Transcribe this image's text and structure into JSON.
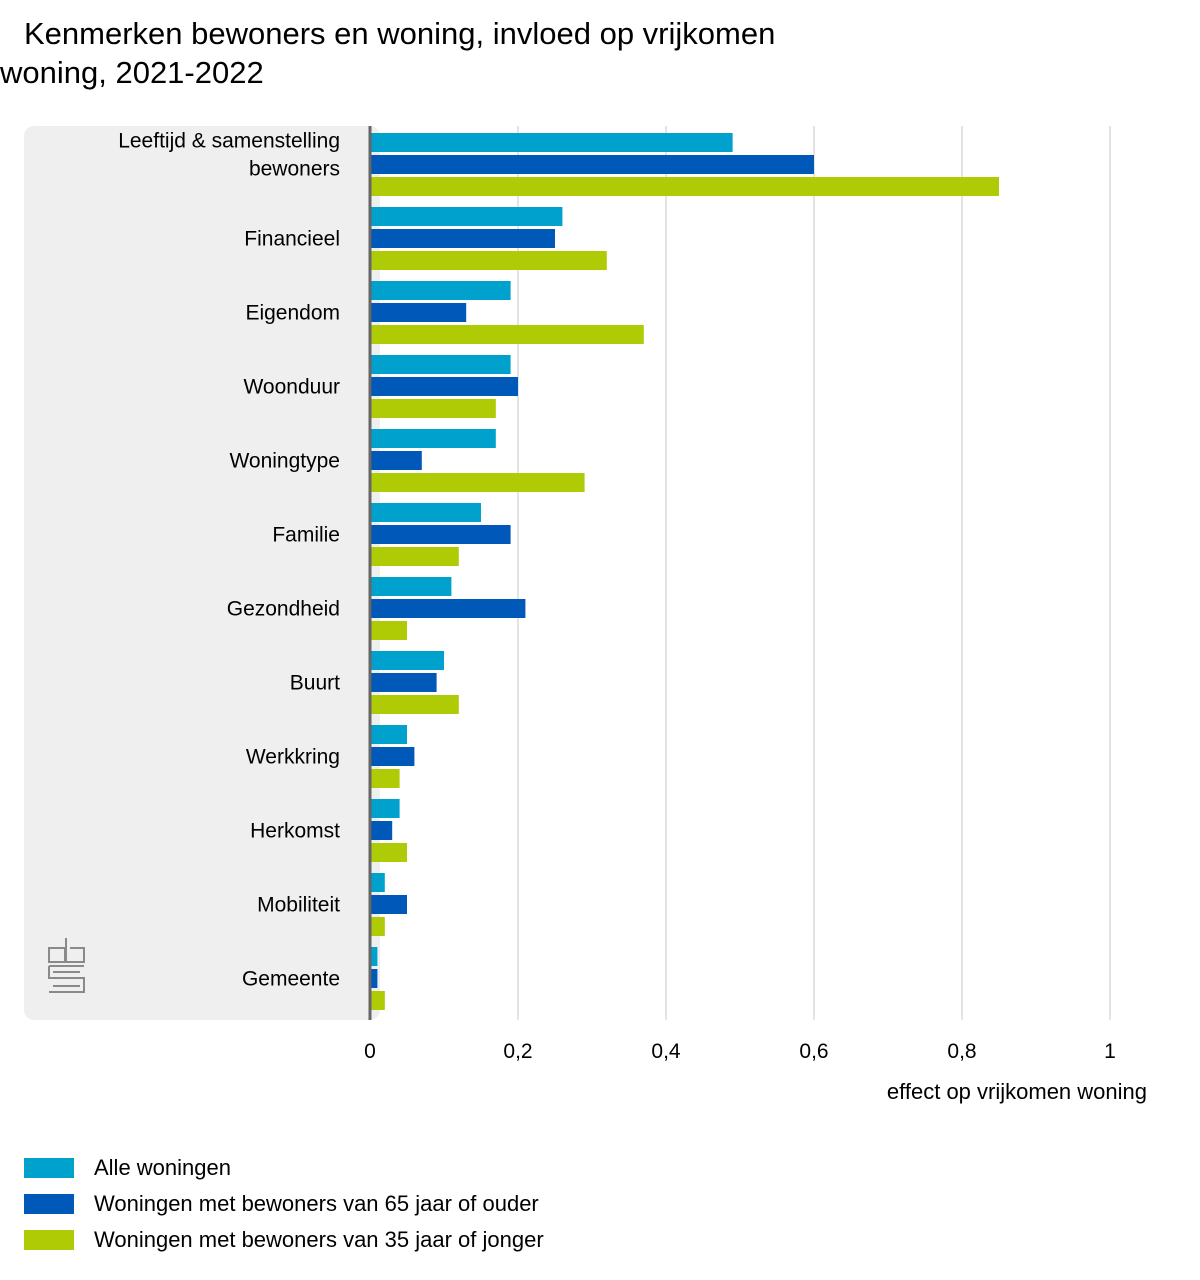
{
  "title_line1": "Kenmerken bewoners en woning, invloed op vrijkomen",
  "title_line2": "woning, 2021-2022",
  "colors": {
    "alle": "#00a1cd",
    "ouder": "#0058b8",
    "jonger": "#afcb05",
    "panel": "#efefef",
    "grid": "#c8c8c8",
    "axis": "#666666"
  },
  "logo_text": "cbs",
  "chart_data": {
    "type": "bar",
    "orientation": "horizontal",
    "categories": [
      [
        "Leeftijd & samenstelling",
        "bewoners"
      ],
      [
        "Financieel"
      ],
      [
        "Eigendom"
      ],
      [
        "Woonduur"
      ],
      [
        "Woningtype"
      ],
      [
        "Familie"
      ],
      [
        "Gezondheid"
      ],
      [
        "Buurt"
      ],
      [
        "Werkkring"
      ],
      [
        "Herkomst"
      ],
      [
        "Mobiliteit"
      ],
      [
        "Gemeente"
      ]
    ],
    "series": [
      {
        "name": "Alle woningen",
        "color": "#00a1cd",
        "values": [
          0.49,
          0.26,
          0.19,
          0.19,
          0.17,
          0.15,
          0.11,
          0.1,
          0.05,
          0.04,
          0.02,
          0.01
        ]
      },
      {
        "name": "Woningen met bewoners van 65 jaar of ouder",
        "color": "#0058b8",
        "values": [
          0.6,
          0.25,
          0.13,
          0.2,
          0.07,
          0.19,
          0.21,
          0.09,
          0.06,
          0.03,
          0.05,
          0.01
        ]
      },
      {
        "name": "Woningen met bewoners van 35 jaar of jonger",
        "color": "#afcb05",
        "values": [
          0.85,
          0.32,
          0.37,
          0.17,
          0.29,
          0.12,
          0.05,
          0.12,
          0.04,
          0.05,
          0.02,
          0.02
        ]
      }
    ],
    "xlim": [
      0,
      1
    ],
    "xticks": [
      0,
      0.2,
      0.4,
      0.6,
      0.8,
      1
    ],
    "xtick_labels": [
      "0",
      "0,2",
      "0,4",
      "0,6",
      "0,8",
      "1"
    ],
    "xlabel": "effect op vrijkomen woning",
    "grid": true,
    "legend_position": "bottom-left"
  }
}
